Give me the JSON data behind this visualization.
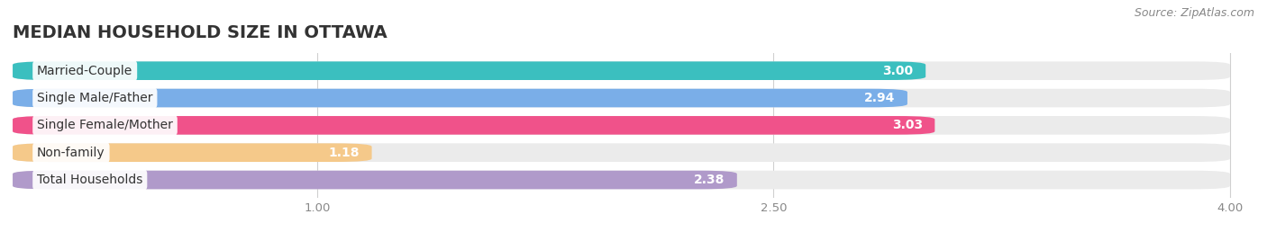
{
  "title": "MEDIAN HOUSEHOLD SIZE IN OTTAWA",
  "source": "Source: ZipAtlas.com",
  "categories": [
    "Married-Couple",
    "Single Male/Father",
    "Single Female/Mother",
    "Non-family",
    "Total Households"
  ],
  "values": [
    3.0,
    2.94,
    3.03,
    1.18,
    2.38
  ],
  "bar_colors": [
    "#3bbfbf",
    "#7aaee8",
    "#f0528a",
    "#f5c98a",
    "#b09aca"
  ],
  "xlim_min": 0.0,
  "xlim_max": 4.0,
  "xticks": [
    1.0,
    2.5,
    4.0
  ],
  "xtick_labels": [
    "1.00",
    "2.50",
    "4.00"
  ],
  "title_fontsize": 14,
  "source_fontsize": 9,
  "label_fontsize": 10,
  "value_fontsize": 10,
  "background_color": "#ffffff",
  "bar_background_color": "#ebebeb"
}
